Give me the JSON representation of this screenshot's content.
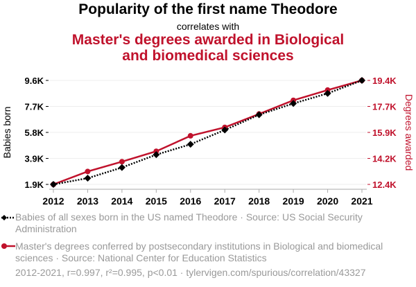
{
  "chart_data": {
    "type": "line",
    "title": "Popularity of the first name Theodore",
    "subtitle": "correlates with",
    "title2": "Master's degrees awarded in Biological and biomedical sciences",
    "title2_lines": [
      "Master's degrees awarded in Biological",
      "and biomedical sciences"
    ],
    "x": [
      2012,
      2013,
      2014,
      2015,
      2016,
      2017,
      2018,
      2019,
      2020,
      2021
    ],
    "xticks": [
      "2012",
      "2013",
      "2014",
      "2015",
      "2016",
      "2017",
      "2018",
      "2019",
      "2020",
      "2021"
    ],
    "ylabel_left": "Babies born",
    "ylabel_right": "Degrees awarded",
    "yticks_left": [
      "1.9K",
      "3.9K",
      "5.8K",
      "7.7K",
      "9.6K"
    ],
    "yticks_right": [
      "12.4K",
      "14.2K",
      "15.9K",
      "17.7K",
      "19.4K"
    ],
    "ylim_left": [
      1900,
      9600
    ],
    "ylim_right": [
      12400,
      19400
    ],
    "grid": true,
    "series": [
      {
        "name": "Babies of all sexes born in the US named Theodore · Source: US Social Security Administration",
        "axis": "left",
        "color": "#000000",
        "values": [
          1900,
          2360,
          3150,
          4100,
          4870,
          5930,
          7060,
          7890,
          8640,
          9600
        ]
      },
      {
        "name": "Master's degrees conferred by postsecondary institutions in Biological and biomedical sciences · Source: National Center for Education Statistics",
        "axis": "right",
        "color": "#c0122c",
        "values": [
          12400,
          13270,
          13930,
          14630,
          15670,
          16240,
          17140,
          18060,
          18750,
          19400
        ]
      }
    ],
    "footer": "2012-2021, r=0.997, r²=0.995, p<0.01 · tylervigen.com/spurious/correlation/43327"
  }
}
